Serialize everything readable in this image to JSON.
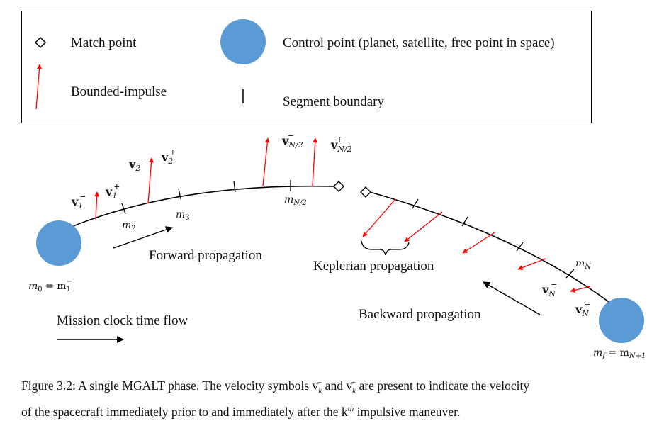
{
  "legend": {
    "match_point_label": "Match point",
    "control_point_label": "Control point (planet, satellite, free point in space)",
    "bounded_impulse_label": "Bounded-impulse",
    "segment_boundary_label": "Segment boundary"
  },
  "diagram": {
    "forward_propagation_label": "Forward propagation",
    "keplerian_propagation_label": "Keplerian propagation",
    "backward_propagation_label": "Backward propagation",
    "mission_clock_label": "Mission clock time flow",
    "mass_labels": {
      "m0": "m",
      "m0_sub": "0",
      "m0_eq": " = m",
      "m0_eq_sub": "1",
      "m0_eq_sup": "−",
      "m2": "m",
      "m2_sub": "2",
      "m3": "m",
      "m3_sub": "3",
      "mN2": "m",
      "mN2_sub": "N/2",
      "mN": "m",
      "mN_sub": "N",
      "mf": "m",
      "mf_sub": "f",
      "mf_eq": " = m",
      "mf_eq_sub": "N+1"
    },
    "velocity_labels": {
      "v": "v",
      "minus": "−",
      "plus": "+",
      "v1_sub": "1",
      "v2_sub": "2",
      "vN2_sub": "N/2",
      "vN_sub": "N"
    },
    "colors": {
      "control_point": "#5b9bd5",
      "impulse": "#ff0000",
      "line": "#000000"
    }
  },
  "caption": {
    "line1": "Figure 3.2:  A single MGALT phase. The velocity symbols v",
    "line1_sub1": "k",
    "line1_sup1": "−",
    "line1_mid": " and v",
    "line1_sub2": "k",
    "line1_sup2": "+",
    "line1_end": " are present to indicate the velocity",
    "line2": "of the spacecraft immediately prior to and immediately after the k",
    "line2_sup": "th",
    "line2_end": " impulsive maneuver."
  }
}
